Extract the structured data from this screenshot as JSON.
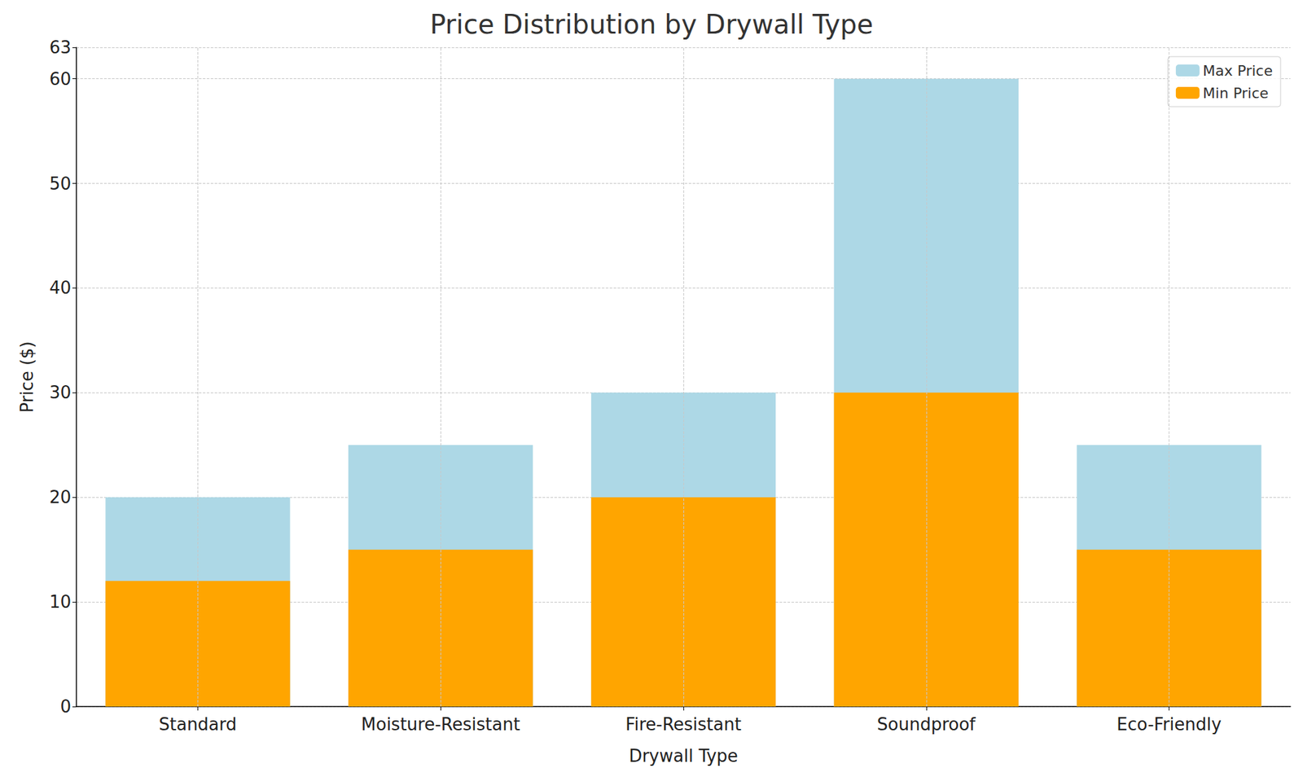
{
  "chart_data": {
    "type": "bar",
    "title": "Price Distribution by Drywall Type",
    "x_label": "Drywall Type",
    "y_label": "Price ($)",
    "categories": [
      "Standard",
      "Moisture-Resistant",
      "Fire-Resistant",
      "Soundproof",
      "Eco-Friendly"
    ],
    "series": [
      {
        "name": "Max Price",
        "color": "#add8e6",
        "values": [
          20,
          25,
          30,
          60,
          25
        ]
      },
      {
        "name": "Min Price",
        "color": "#ffa500",
        "values": [
          12,
          15,
          20,
          30,
          15
        ]
      }
    ],
    "ylim": [
      0,
      63
    ],
    "yticks": [
      0,
      10,
      20,
      30,
      40,
      50,
      60
    ],
    "grid": true,
    "legend": "upper right"
  }
}
